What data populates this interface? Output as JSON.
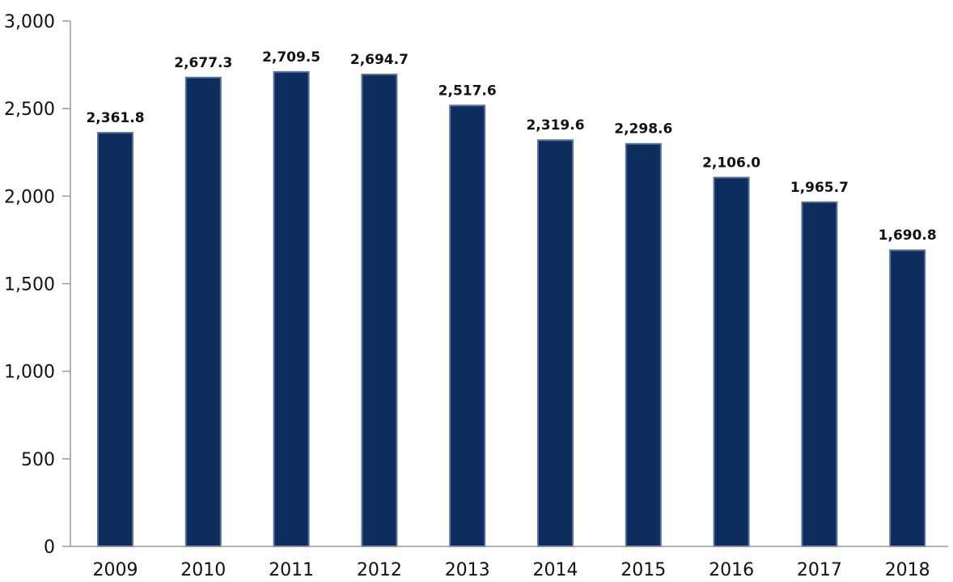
{
  "chart_data": {
    "type": "bar",
    "title": "",
    "xlabel": "",
    "ylabel": "",
    "categories": [
      "2009",
      "2010",
      "2011",
      "2012",
      "2013",
      "2014",
      "2015",
      "2016",
      "2017",
      "2018"
    ],
    "values": [
      2361.8,
      2677.3,
      2709.5,
      2694.7,
      2517.6,
      2319.6,
      2298.6,
      2106.0,
      1965.7,
      1690.8
    ],
    "value_labels": [
      "2,361.8",
      "2,677.3",
      "2,709.5",
      "2,694.7",
      "2,517.6",
      "2,319.6",
      "2,298.6",
      "2,106.0",
      "1,965.7",
      "1,690.8"
    ],
    "ylim": [
      0,
      3000
    ],
    "yticks": [
      0,
      500,
      1000,
      1500,
      2000,
      2500,
      3000
    ],
    "ytick_labels": [
      "0",
      "500",
      "1,000",
      "1,500",
      "2,000",
      "2,500",
      "3,000"
    ],
    "grid": false,
    "legend": "none",
    "bar_color": "#0d2d5e",
    "bar_edge_color": "#5c6f96",
    "axis_color": "#9a9a9a"
  }
}
